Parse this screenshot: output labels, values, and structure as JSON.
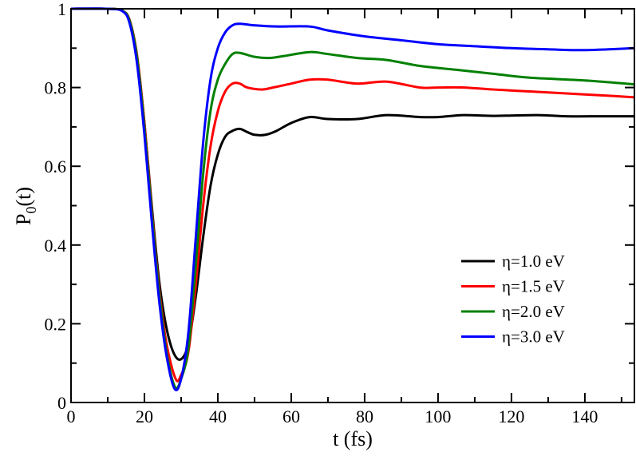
{
  "chart_data": {
    "type": "line",
    "title": "",
    "xlabel": "t (fs)",
    "ylabel": "P",
    "ylabel_sub": "0",
    "ylabel_suffix": "(t)",
    "xlim": [
      0,
      153.5
    ],
    "ylim": [
      0,
      1
    ],
    "xticks": [
      0,
      20,
      40,
      60,
      80,
      100,
      120,
      140
    ],
    "xtick_labels": [
      "0",
      "20",
      "40",
      "60",
      "80",
      "100",
      "120",
      "140"
    ],
    "yticks": [
      0,
      0.2,
      0.4,
      0.6,
      0.8,
      1
    ],
    "ytick_labels": [
      "0",
      "0.2",
      "0.4",
      "0.6",
      "0.8",
      "1"
    ],
    "grid": false,
    "legend_position": "center-right",
    "series": [
      {
        "name": "η=1.0 eV",
        "color": "#000000",
        "x": [
          0,
          10,
          14,
          16,
          18,
          20,
          22,
          24,
          26,
          28,
          30,
          32,
          34,
          36,
          38,
          40,
          42,
          44,
          46,
          48,
          50,
          53,
          56,
          60,
          65,
          70,
          78,
          86,
          95,
          100,
          107,
          115,
          127,
          135,
          145,
          153.5
        ],
        "y": [
          1,
          1,
          0.995,
          0.97,
          0.88,
          0.71,
          0.5,
          0.31,
          0.19,
          0.125,
          0.11,
          0.15,
          0.27,
          0.42,
          0.55,
          0.63,
          0.675,
          0.69,
          0.695,
          0.687,
          0.68,
          0.68,
          0.69,
          0.71,
          0.725,
          0.72,
          0.72,
          0.73,
          0.725,
          0.725,
          0.73,
          0.728,
          0.73,
          0.727,
          0.727,
          0.727
        ]
      },
      {
        "name": "η=1.5 eV",
        "color": "#ff0000",
        "x": [
          0,
          10,
          14,
          16,
          18,
          20,
          22,
          24,
          26,
          28.5,
          30,
          32,
          34,
          36,
          38,
          40,
          42,
          44,
          46,
          48,
          52,
          55,
          60,
          65,
          70,
          78,
          86,
          95,
          100,
          107,
          115,
          125,
          135,
          145,
          153.5
        ],
        "y": [
          1,
          1,
          0.995,
          0.97,
          0.88,
          0.71,
          0.49,
          0.29,
          0.15,
          0.06,
          0.07,
          0.13,
          0.3,
          0.5,
          0.65,
          0.74,
          0.79,
          0.81,
          0.81,
          0.8,
          0.795,
          0.8,
          0.81,
          0.82,
          0.82,
          0.81,
          0.815,
          0.8,
          0.8,
          0.8,
          0.795,
          0.79,
          0.785,
          0.78,
          0.775
        ]
      },
      {
        "name": "η=2.0 eV",
        "color": "#008000",
        "x": [
          0,
          10,
          14,
          16,
          18,
          20,
          22,
          24,
          26,
          28.3,
          30,
          32,
          34,
          36,
          38,
          40,
          42,
          44,
          46,
          50,
          54,
          58,
          65,
          70,
          78,
          86,
          95,
          105,
          115,
          125,
          140,
          153.5
        ],
        "y": [
          1,
          1,
          0.995,
          0.968,
          0.875,
          0.7,
          0.48,
          0.28,
          0.13,
          0.04,
          0.06,
          0.14,
          0.35,
          0.58,
          0.74,
          0.82,
          0.86,
          0.885,
          0.888,
          0.878,
          0.875,
          0.88,
          0.89,
          0.885,
          0.875,
          0.87,
          0.855,
          0.845,
          0.835,
          0.825,
          0.818,
          0.808
        ]
      },
      {
        "name": "η=3.0 eV",
        "color": "#0000ff",
        "x": [
          0,
          10,
          14,
          16,
          18,
          20,
          22,
          24,
          26,
          28.2,
          30,
          32,
          34,
          36,
          38,
          40,
          42,
          44,
          46,
          50,
          56,
          65,
          70,
          80,
          90,
          100,
          110,
          120,
          130,
          140,
          153.5
        ],
        "y": [
          1,
          1,
          0.994,
          0.962,
          0.86,
          0.68,
          0.46,
          0.26,
          0.12,
          0.035,
          0.06,
          0.18,
          0.42,
          0.66,
          0.82,
          0.9,
          0.94,
          0.958,
          0.962,
          0.958,
          0.955,
          0.955,
          0.945,
          0.93,
          0.92,
          0.91,
          0.905,
          0.9,
          0.897,
          0.895,
          0.9
        ]
      }
    ]
  }
}
